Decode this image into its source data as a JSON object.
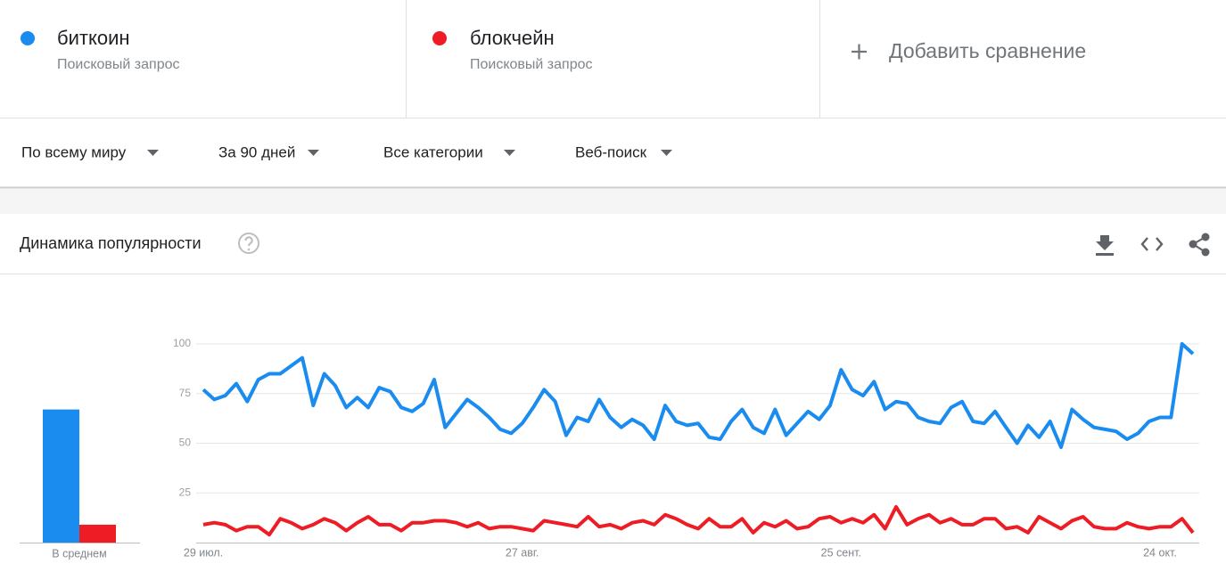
{
  "header": {
    "term_type": "Поисковый запрос",
    "add": "Добавить сравнение"
  },
  "filters": [
    "По всему миру",
    "За 90 дней",
    "Все категории",
    "Веб-поиск"
  ],
  "card_title": "Динамика популярности",
  "chart_data": {
    "type": "line",
    "categories": [
      "29 июл.",
      null,
      null,
      null,
      null,
      null,
      null,
      null,
      null,
      null,
      null,
      null,
      null,
      null,
      null,
      null,
      null,
      null,
      null,
      null,
      null,
      null,
      null,
      null,
      null,
      null,
      null,
      null,
      null,
      "27 авг.",
      null,
      null,
      null,
      null,
      null,
      null,
      null,
      null,
      null,
      null,
      null,
      null,
      null,
      null,
      null,
      null,
      null,
      null,
      null,
      null,
      null,
      null,
      null,
      null,
      null,
      null,
      null,
      null,
      "25 сент.",
      null,
      null,
      null,
      null,
      null,
      null,
      null,
      null,
      null,
      null,
      null,
      null,
      null,
      null,
      null,
      null,
      null,
      null,
      null,
      null,
      null,
      null,
      null,
      null,
      null,
      null,
      null,
      null,
      "24 окт.",
      null,
      null,
      null
    ],
    "series": [
      {
        "name": "биткоин",
        "color": "#1a8cf0",
        "values": [
          77,
          72,
          74,
          80,
          71,
          82,
          85,
          85,
          89,
          93,
          69,
          85,
          79,
          68,
          73,
          68,
          78,
          76,
          68,
          66,
          70,
          82,
          58,
          65,
          72,
          68,
          63,
          57,
          55,
          60,
          68,
          77,
          71,
          54,
          63,
          61,
          72,
          63,
          58,
          62,
          59,
          52,
          69,
          61,
          59,
          60,
          53,
          52,
          61,
          67,
          58,
          55,
          67,
          54,
          60,
          66,
          62,
          69,
          87,
          77,
          74,
          81,
          67,
          71,
          70,
          63,
          61,
          60,
          68,
          71,
          61,
          60,
          66,
          58,
          50,
          59,
          53,
          61,
          48,
          67,
          62,
          58,
          57,
          56,
          52,
          55,
          61,
          63,
          63,
          100,
          95
        ]
      },
      {
        "name": "блокчейн",
        "color": "#ee1c25",
        "values": [
          9,
          10,
          9,
          6,
          8,
          8,
          4,
          12,
          10,
          7,
          9,
          12,
          10,
          6,
          10,
          13,
          9,
          9,
          6,
          10,
          10,
          11,
          11,
          10,
          8,
          10,
          7,
          8,
          8,
          7,
          6,
          11,
          10,
          9,
          8,
          13,
          8,
          9,
          7,
          10,
          11,
          9,
          14,
          12,
          9,
          7,
          12,
          8,
          8,
          12,
          5,
          10,
          8,
          11,
          7,
          8,
          12,
          13,
          10,
          12,
          10,
          14,
          7,
          18,
          9,
          12,
          14,
          10,
          12,
          9,
          9,
          12,
          12,
          7,
          8,
          5,
          13,
          10,
          7,
          11,
          13,
          8,
          7,
          7,
          10,
          8,
          7,
          8,
          8,
          12,
          5
        ]
      }
    ],
    "ylim": [
      0,
      100
    ],
    "yticks": [
      25,
      50,
      75,
      100
    ],
    "grid": true,
    "average": {
      "label": "В среднем",
      "values": [
        67,
        9
      ]
    }
  }
}
